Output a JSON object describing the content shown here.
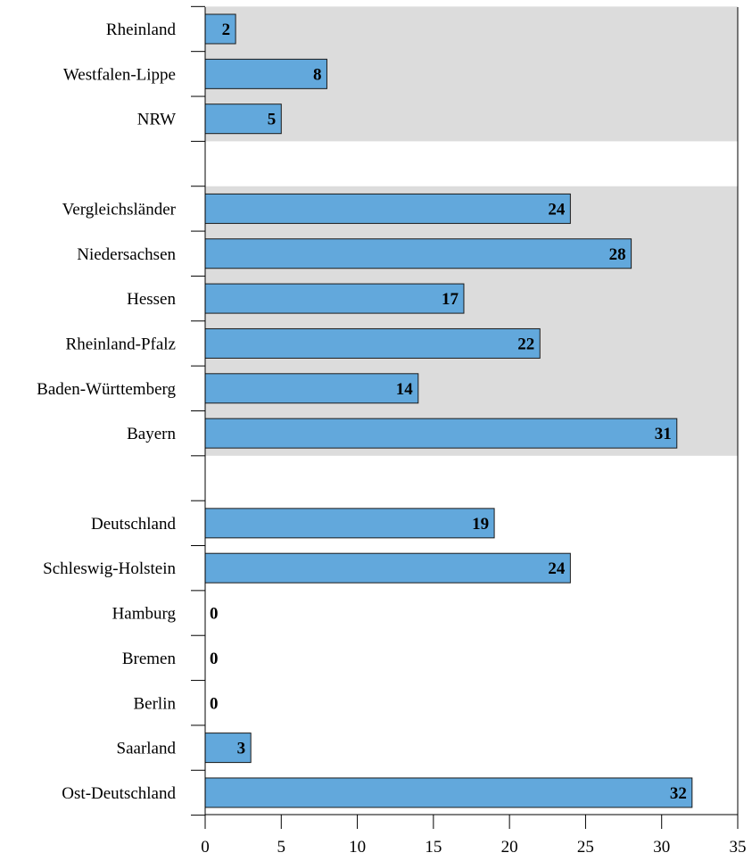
{
  "chart_data": {
    "type": "bar",
    "orientation": "horizontal",
    "categories": [
      "Rheinland",
      "Westfalen-Lippe",
      "NRW",
      "",
      "Vergleichsländer",
      "Niedersachsen",
      "Hessen",
      "Rheinland-Pfalz",
      "Baden-Württemberg",
      "Bayern",
      "",
      "Deutschland",
      "Schleswig-Holstein",
      "Hamburg",
      "Bremen",
      "Berlin",
      "Saarland",
      "Ost-Deutschland"
    ],
    "values": [
      2,
      8,
      5,
      null,
      24,
      28,
      17,
      22,
      14,
      31,
      null,
      19,
      24,
      0,
      0,
      0,
      3,
      32
    ],
    "value_labels": [
      "2",
      "8",
      "5",
      "",
      "24",
      "28",
      "17",
      "22",
      "14",
      "31",
      "",
      "19",
      "24",
      "0",
      "0",
      "0",
      "3",
      "32"
    ],
    "shaded_groups": [
      {
        "from": "Rheinland",
        "to": "NRW"
      },
      {
        "from": "Vergleichsländer",
        "to": "Bayern"
      }
    ],
    "xlim": [
      0,
      35
    ],
    "xticks": [
      "0",
      "5",
      "10",
      "15",
      "20",
      "25",
      "30",
      "35"
    ],
    "title": "",
    "xlabel": "",
    "ylabel": "",
    "grid": false,
    "colors": {
      "bar": "#62a8dc",
      "bar_edge": "#1a1a1a",
      "shading": "#dcdcdc",
      "axis": "#000000"
    }
  }
}
